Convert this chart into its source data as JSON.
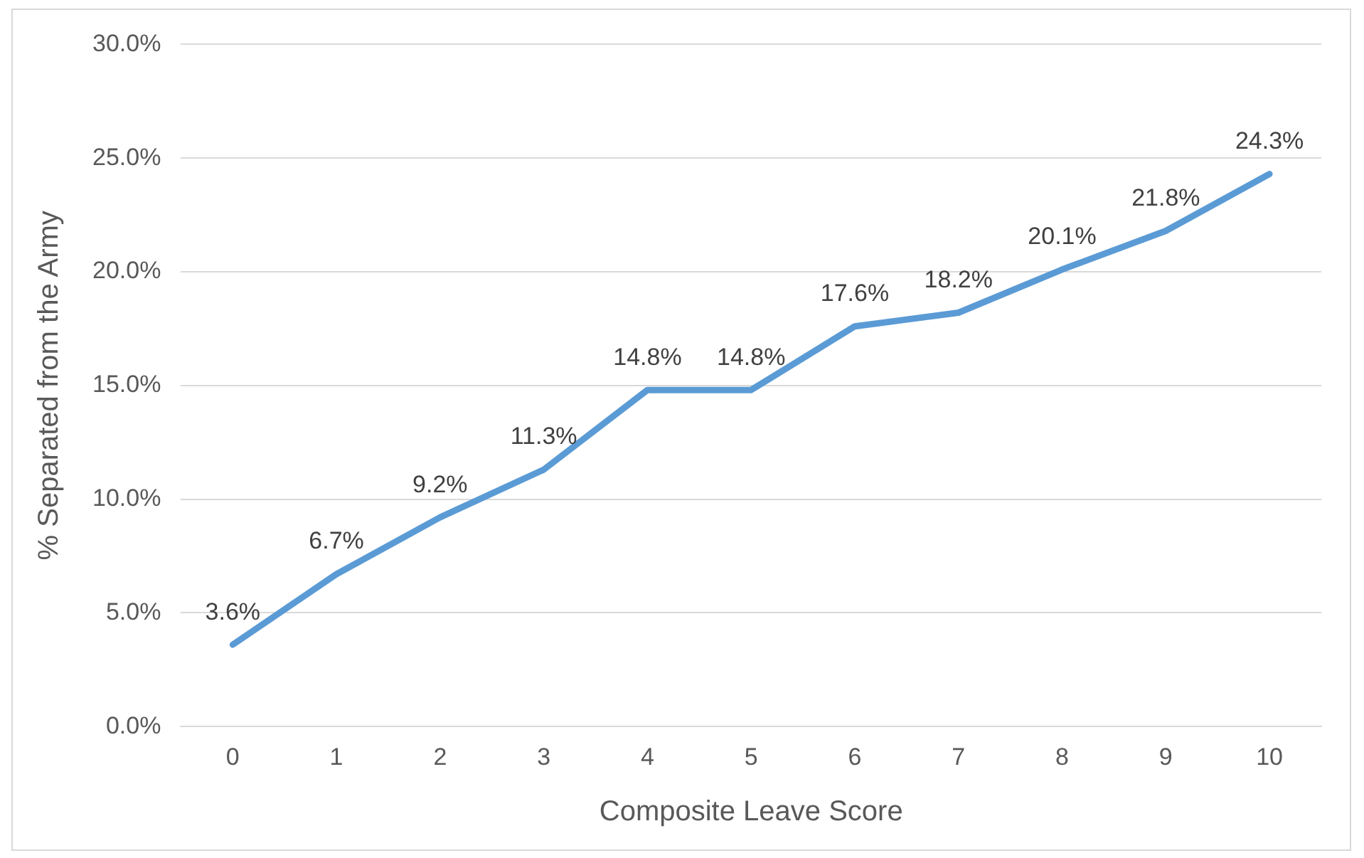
{
  "chart_data": {
    "type": "line",
    "xlabel": "Composite Leave Score",
    "ylabel": "% Separated from the Army",
    "categories": [
      "0",
      "1",
      "2",
      "3",
      "4",
      "5",
      "6",
      "7",
      "8",
      "9",
      "10"
    ],
    "series": [
      {
        "color": "#5b9bd5",
        "values": [
          3.6,
          6.7,
          9.2,
          11.3,
          14.8,
          14.8,
          17.6,
          18.2,
          20.1,
          21.8,
          24.3
        ],
        "value_labels": [
          "3.6%",
          "6.7%",
          "9.2%",
          "11.3%",
          "14.8%",
          "14.8%",
          "17.6%",
          "18.2%",
          "20.1%",
          "21.8%",
          "24.3%"
        ]
      }
    ],
    "ylim": [
      0,
      30
    ],
    "yticks": [
      {
        "value": 0,
        "label": "0.0%"
      },
      {
        "value": 5,
        "label": "5.0%"
      },
      {
        "value": 10,
        "label": "10.0%"
      },
      {
        "value": 15,
        "label": "15.0%"
      },
      {
        "value": 20,
        "label": "20.0%"
      },
      {
        "value": 25,
        "label": "25.0%"
      },
      {
        "value": 30,
        "label": "30.0%"
      }
    ],
    "grid": "y",
    "legend": false,
    "marker": "none",
    "line_style": "solid"
  }
}
